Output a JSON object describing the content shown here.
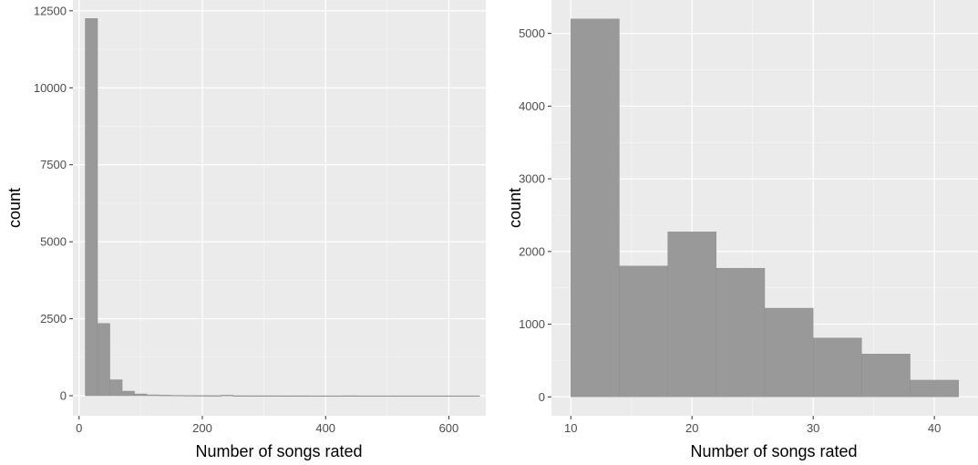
{
  "chart_data": [
    {
      "type": "bar",
      "subtype": "histogram",
      "xlabel": "Number of songs rated",
      "ylabel": "count",
      "xlim": [
        -10,
        660
      ],
      "ylim": [
        -650,
        12850
      ],
      "xticks": [
        0,
        200,
        400,
        600
      ],
      "yticks": [
        0,
        2500,
        5000,
        7500,
        10000,
        12500
      ],
      "xtick_labels": [
        "0",
        "200",
        "400",
        "600"
      ],
      "ytick_labels": [
        "0",
        "2500",
        "5000",
        "7500",
        "10000",
        "12500"
      ],
      "grid": true,
      "bins": [
        {
          "start": 10,
          "end": 30,
          "count": 12250
        },
        {
          "start": 30,
          "end": 50,
          "count": 2350
        },
        {
          "start": 50,
          "end": 70,
          "count": 520
        },
        {
          "start": 70,
          "end": 90,
          "count": 150
        },
        {
          "start": 90,
          "end": 110,
          "count": 60
        },
        {
          "start": 110,
          "end": 130,
          "count": 30
        },
        {
          "start": 130,
          "end": 150,
          "count": 20
        },
        {
          "start": 150,
          "end": 170,
          "count": 15
        },
        {
          "start": 170,
          "end": 190,
          "count": 10
        },
        {
          "start": 190,
          "end": 210,
          "count": 8
        },
        {
          "start": 210,
          "end": 230,
          "count": 6
        },
        {
          "start": 230,
          "end": 250,
          "count": 20
        },
        {
          "start": 250,
          "end": 270,
          "count": 4
        },
        {
          "start": 270,
          "end": 290,
          "count": 3
        },
        {
          "start": 290,
          "end": 310,
          "count": 3
        },
        {
          "start": 310,
          "end": 330,
          "count": 2
        },
        {
          "start": 330,
          "end": 350,
          "count": 2
        },
        {
          "start": 350,
          "end": 370,
          "count": 2
        },
        {
          "start": 370,
          "end": 390,
          "count": 1
        },
        {
          "start": 390,
          "end": 410,
          "count": 1
        },
        {
          "start": 410,
          "end": 430,
          "count": 1
        },
        {
          "start": 430,
          "end": 450,
          "count": 4
        },
        {
          "start": 450,
          "end": 470,
          "count": 1
        },
        {
          "start": 470,
          "end": 490,
          "count": 1
        },
        {
          "start": 490,
          "end": 510,
          "count": 1
        },
        {
          "start": 510,
          "end": 530,
          "count": 1
        },
        {
          "start": 530,
          "end": 550,
          "count": 1
        },
        {
          "start": 550,
          "end": 570,
          "count": 1
        },
        {
          "start": 570,
          "end": 590,
          "count": 1
        },
        {
          "start": 590,
          "end": 610,
          "count": 1
        },
        {
          "start": 610,
          "end": 630,
          "count": 1
        },
        {
          "start": 630,
          "end": 650,
          "count": 1
        }
      ],
      "bar_color": "#999999"
    },
    {
      "type": "bar",
      "subtype": "histogram",
      "xlabel": "Number of songs rated",
      "ylabel": "count",
      "xlim": [
        8.4,
        43.6
      ],
      "ylim": [
        -260,
        5460
      ],
      "xticks": [
        10,
        20,
        30,
        40
      ],
      "yticks": [
        0,
        1000,
        2000,
        3000,
        4000,
        5000
      ],
      "xtick_labels": [
        "10",
        "20",
        "30",
        "40"
      ],
      "ytick_labels": [
        "0",
        "1000",
        "2000",
        "3000",
        "4000",
        "5000"
      ],
      "grid": true,
      "bins": [
        {
          "start": 10,
          "end": 14,
          "count": 5200
        },
        {
          "start": 14,
          "end": 18,
          "count": 1800
        },
        {
          "start": 18,
          "end": 22,
          "count": 2270
        },
        {
          "start": 22,
          "end": 26,
          "count": 1770
        },
        {
          "start": 26,
          "end": 30,
          "count": 1220
        },
        {
          "start": 30,
          "end": 34,
          "count": 810
        },
        {
          "start": 34,
          "end": 38,
          "count": 590
        },
        {
          "start": 38,
          "end": 42,
          "count": 230
        }
      ],
      "bar_color": "#999999"
    }
  ]
}
